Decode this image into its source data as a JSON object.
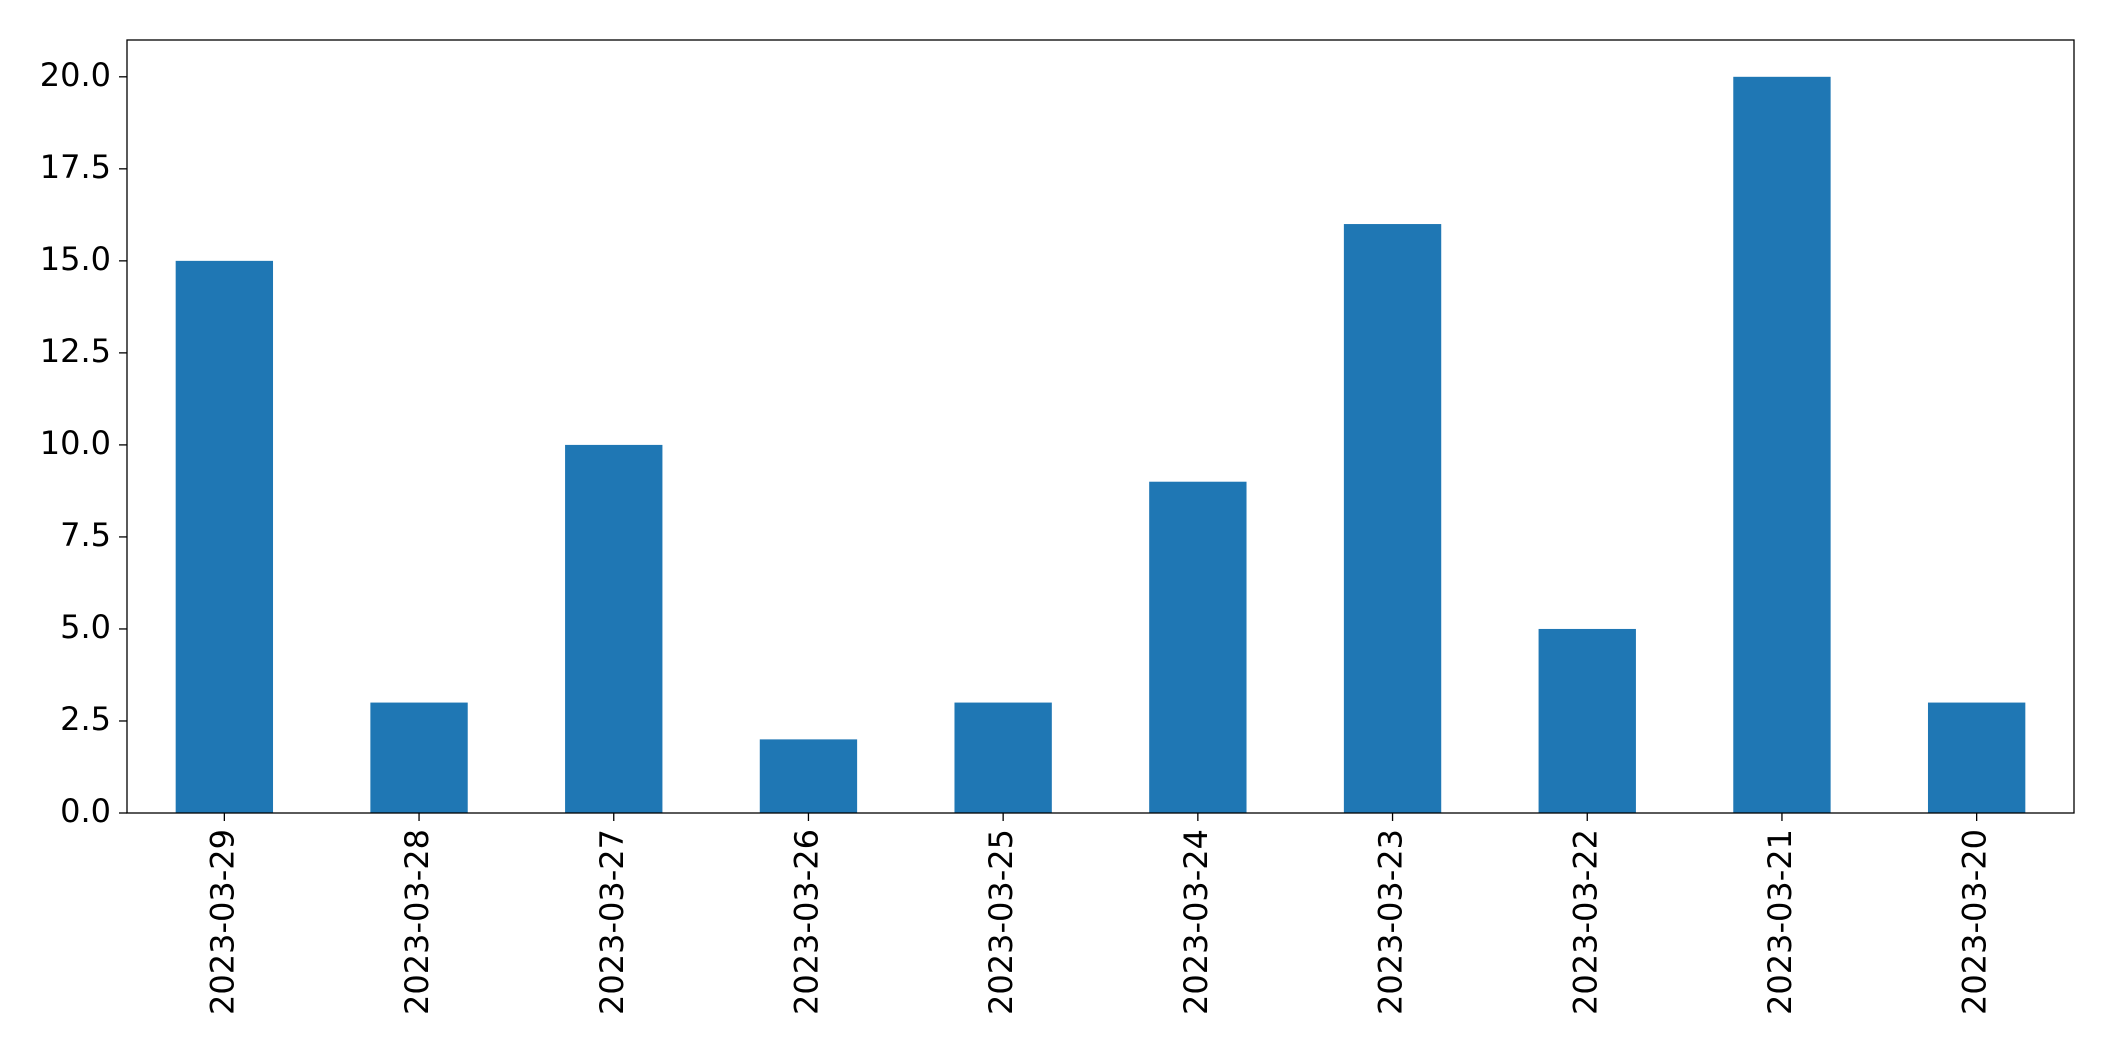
{
  "chart_data": {
    "type": "bar",
    "categories": [
      "2023-03-29",
      "2023-03-28",
      "2023-03-27",
      "2023-03-26",
      "2023-03-25",
      "2023-03-24",
      "2023-03-23",
      "2023-03-22",
      "2023-03-21",
      "2023-03-20"
    ],
    "values": [
      15,
      3,
      10,
      2,
      3,
      9,
      16,
      5,
      20,
      3
    ],
    "color": "#1f77b4",
    "ylim": [
      0,
      21
    ],
    "yticks": [
      {
        "value": 0,
        "label": "0.0"
      },
      {
        "value": 2.5,
        "label": "2.5"
      },
      {
        "value": 5,
        "label": "5.0"
      },
      {
        "value": 7.5,
        "label": "7.5"
      },
      {
        "value": 10,
        "label": "10.0"
      },
      {
        "value": 12.5,
        "label": "12.5"
      },
      {
        "value": 15,
        "label": "15.0"
      },
      {
        "value": 17.5,
        "label": "17.5"
      },
      {
        "value": 20,
        "label": "20.0"
      }
    ],
    "grid": false
  }
}
